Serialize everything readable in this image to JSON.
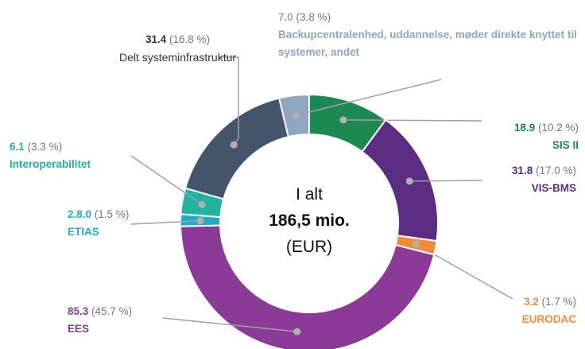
{
  "chart_data": {
    "type": "pie",
    "donut": true,
    "center_text": [
      "I alt",
      "186,5 mio.",
      "(EUR)"
    ],
    "categories": [
      "SIS II",
      "VIS-BMS",
      "EURODAC",
      "EES",
      "ETIAS",
      "Interoperabilitet",
      "Delt systeminfrastruktur",
      "Backupcentralenhed,  uddannelse, møder direkte knyttet til systemer, andet"
    ],
    "values": [
      18.9,
      31.8,
      3.2,
      85.3,
      2.8,
      6.1,
      31.4,
      7.0
    ],
    "value_labels": [
      "18.9",
      "31.8",
      "3.2",
      "85.3",
      "2.8.0",
      "6.1",
      "31.4",
      "7.0"
    ],
    "percent_labels": [
      "(10.2 %)",
      "(17.0 %)",
      "(1.7 %)",
      "(45.7 %)",
      "(1.5 %)",
      "(3.3 %)",
      "(16.8 %)",
      "(3.8 %)"
    ],
    "colors": [
      "#1b8a52",
      "#5a2d82",
      "#f58a33",
      "#8c3a98",
      "#1aafc2",
      "#20b3a0",
      "#44546a",
      "#8fa6c1"
    ]
  }
}
